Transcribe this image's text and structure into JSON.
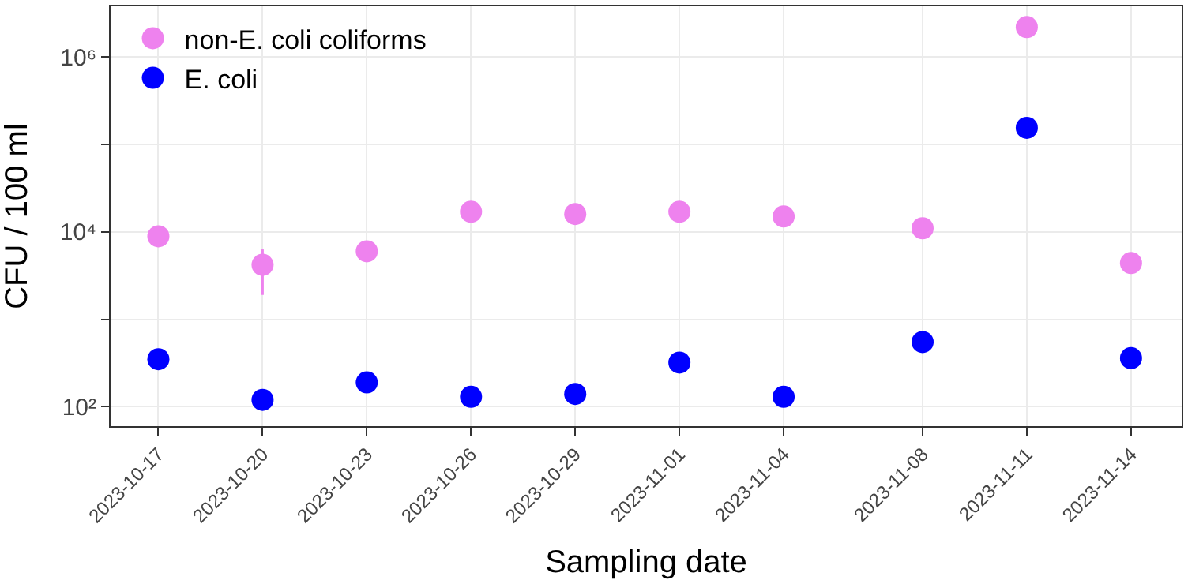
{
  "chart_data": {
    "type": "scatter",
    "xlabel": "Sampling date",
    "ylabel": "CFU / 100 ml",
    "x": [
      "2023-10-17",
      "2023-10-20",
      "2023-10-23",
      "2023-10-26",
      "2023-10-29",
      "2023-11-01",
      "2023-11-04",
      "2023-11-08",
      "2023-11-11",
      "2023-11-14"
    ],
    "series": [
      {
        "name": "non-E. coli coliforms",
        "color": "#ee82ee",
        "values": [
          8900,
          4200,
          6000,
          17000,
          16000,
          17000,
          15000,
          11000,
          2200000,
          4400
        ],
        "errors": [
          null,
          [
            1900,
            6300
          ],
          null,
          null,
          null,
          null,
          null,
          null,
          null,
          null
        ]
      },
      {
        "name": "E. coli",
        "color": "#0000ff",
        "values": [
          350,
          120,
          190,
          130,
          140,
          320,
          130,
          550,
          155000,
          360
        ]
      }
    ],
    "log": "y",
    "ylim": [
      60,
      3800000
    ],
    "yticks": [
      {
        "value": 100,
        "label": "10²"
      },
      {
        "value": 1000,
        "label": null
      },
      {
        "value": 10000,
        "label": "10⁴"
      },
      {
        "value": 100000,
        "label": null
      },
      {
        "value": 1000000,
        "label": "10⁶"
      }
    ],
    "xlim": [
      "2023-10-15T15:00",
      "2023-11-15T11:00"
    ],
    "xticks": [
      "2023-10-17",
      "2023-10-20",
      "2023-10-23",
      "2023-10-26",
      "2023-10-29",
      "2023-11-01",
      "2023-11-04",
      "2023-11-08",
      "2023-11-11",
      "2023-11-14"
    ],
    "grid": true,
    "legend": "top left",
    "marker": "circle"
  }
}
